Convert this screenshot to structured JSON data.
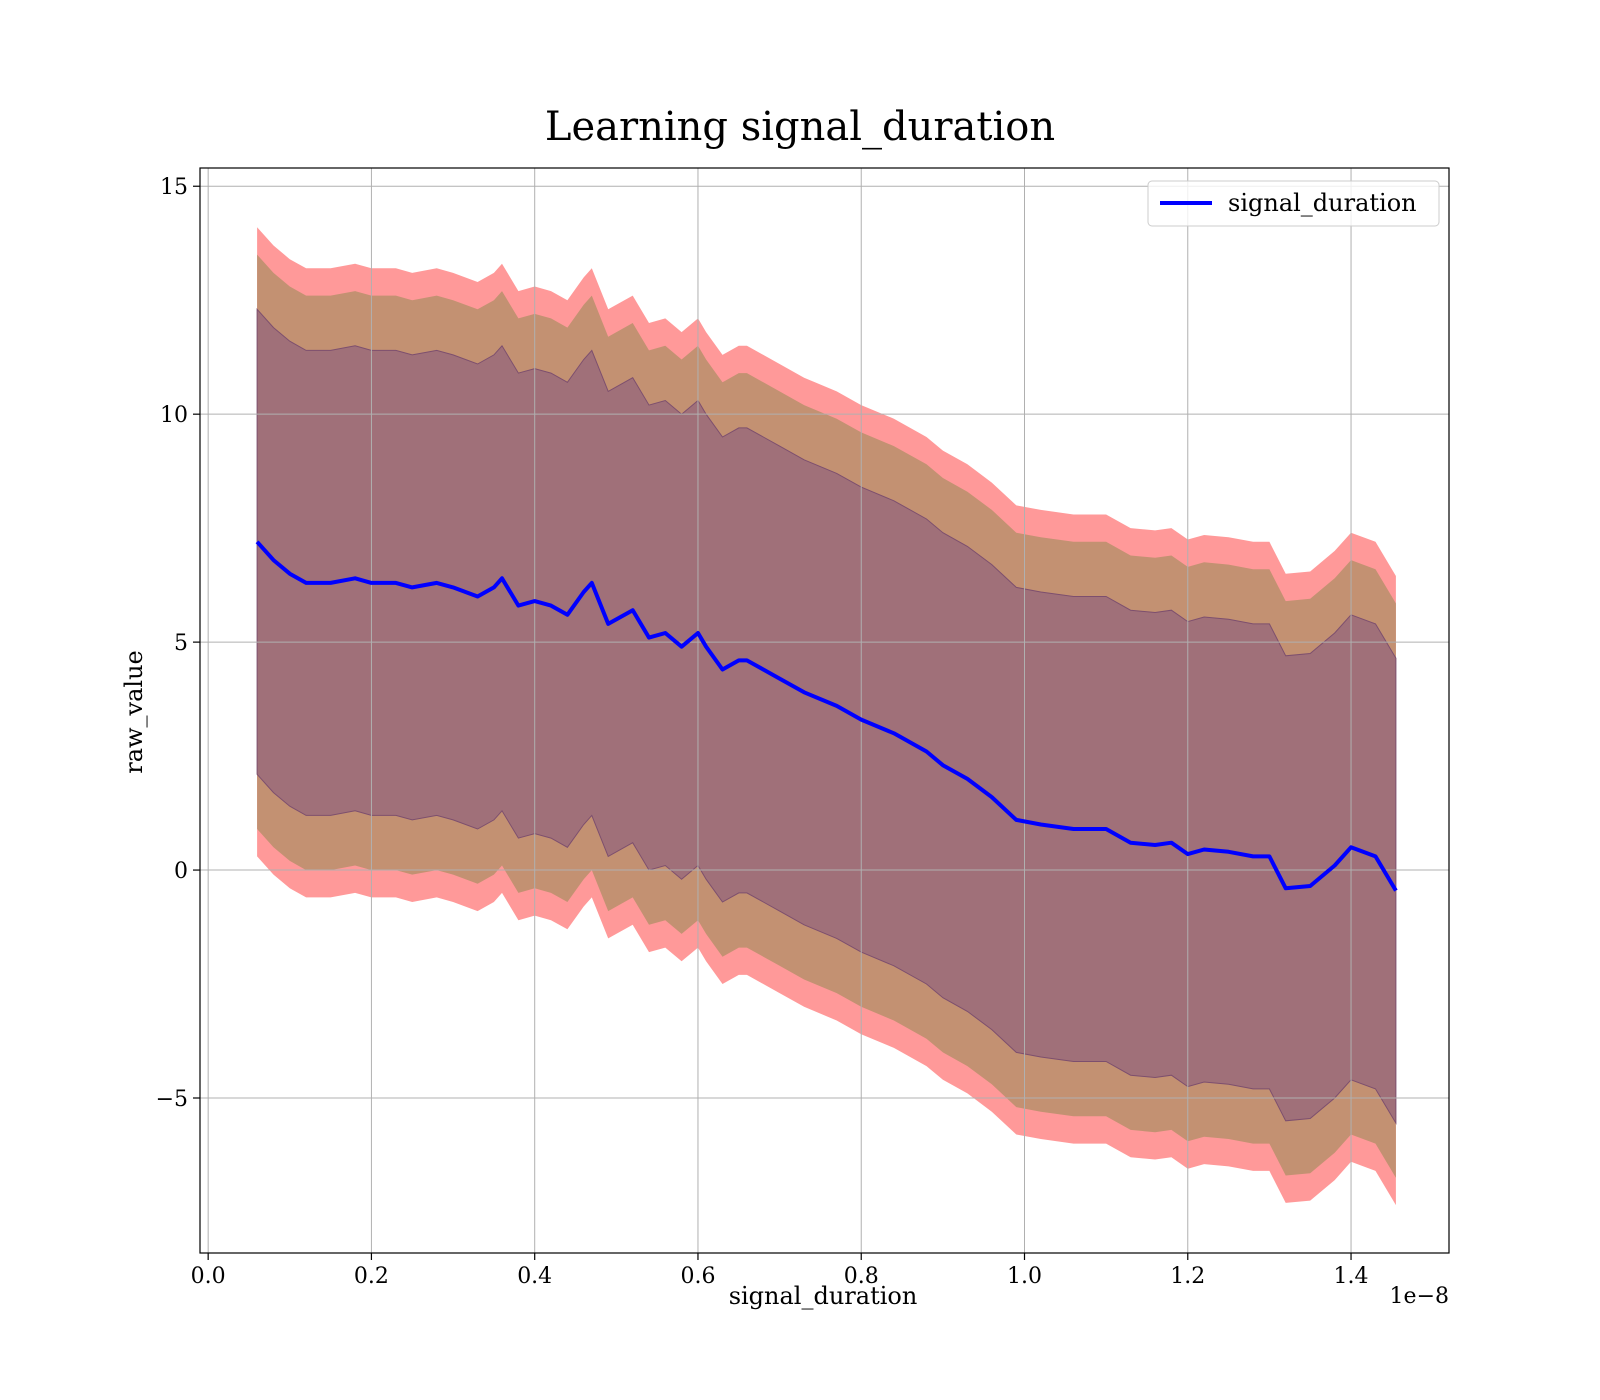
{
  "chart_data": {
    "type": "area",
    "title": "Learning signal_duration",
    "xlabel": "signal_duration",
    "ylabel": "raw_value",
    "x_scale_label": "1e−8",
    "xlim": [
      -0.01,
      1.52
    ],
    "ylim": [
      -8.4,
      15.4
    ],
    "grid": true,
    "legend_position": "top-right",
    "x_ticks": [
      0.0,
      0.2,
      0.4,
      0.6,
      0.8,
      1.0,
      1.2,
      1.4
    ],
    "x_tick_labels": [
      "0.0",
      "0.2",
      "0.4",
      "0.6",
      "0.8",
      "1.0",
      "1.2",
      "1.4"
    ],
    "y_ticks": [
      15,
      10,
      5,
      0,
      -5
    ],
    "y_tick_labels": [
      "15",
      "10",
      "5",
      "0",
      "−5"
    ],
    "colors": {
      "line": "#0000ff",
      "outer_band": "#ff9999",
      "middle_band": "#c39172",
      "inner_band": "#a07079",
      "inner_band_edge": "#7d4f6e",
      "grid": "#b0b0b0"
    },
    "series": [
      {
        "name": "signal_duration",
        "x": [
          0.06,
          0.08,
          0.1,
          0.12,
          0.15,
          0.18,
          0.2,
          0.23,
          0.25,
          0.28,
          0.3,
          0.33,
          0.35,
          0.36,
          0.38,
          0.4,
          0.42,
          0.44,
          0.46,
          0.47,
          0.49,
          0.52,
          0.54,
          0.56,
          0.58,
          0.6,
          0.61,
          0.63,
          0.65,
          0.66,
          0.68,
          0.7,
          0.73,
          0.77,
          0.8,
          0.84,
          0.88,
          0.9,
          0.93,
          0.96,
          0.99,
          1.02,
          1.06,
          1.1,
          1.13,
          1.16,
          1.18,
          1.2,
          1.22,
          1.25,
          1.28,
          1.3,
          1.32,
          1.35,
          1.38,
          1.4,
          1.43,
          1.455
        ],
        "values": [
          7.2,
          6.8,
          6.5,
          6.3,
          6.3,
          6.4,
          6.3,
          6.3,
          6.2,
          6.3,
          6.2,
          6.0,
          6.2,
          6.4,
          5.8,
          5.9,
          5.8,
          5.6,
          6.1,
          6.3,
          5.4,
          5.7,
          5.1,
          5.2,
          4.9,
          5.2,
          4.9,
          4.4,
          4.6,
          4.6,
          4.4,
          4.2,
          3.9,
          3.6,
          3.3,
          3.0,
          2.6,
          2.3,
          2.0,
          1.6,
          1.1,
          1.0,
          0.9,
          0.9,
          0.6,
          0.55,
          0.6,
          0.35,
          0.45,
          0.4,
          0.3,
          0.3,
          -0.4,
          -0.35,
          0.1,
          0.5,
          0.3,
          -0.45
        ]
      }
    ],
    "bands": [
      {
        "role": "outer_band",
        "half_width": 6.9
      },
      {
        "role": "middle_band",
        "half_width": 6.3
      },
      {
        "role": "inner_band",
        "half_width": 5.1
      }
    ]
  }
}
